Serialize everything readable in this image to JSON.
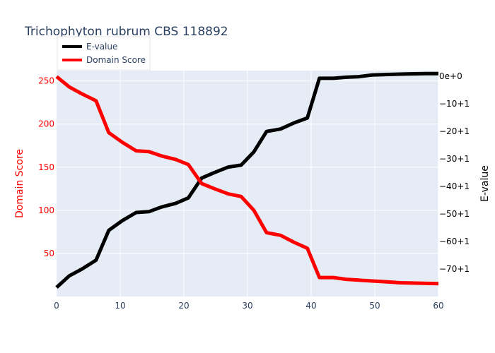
{
  "chart_data": {
    "type": "line",
    "title": "Trichophyton rubrum CBS 118892",
    "xlabel": "",
    "x_range": [
      0,
      60
    ],
    "x_ticks": [
      0,
      10,
      20,
      30,
      40,
      50,
      60
    ],
    "y_left": {
      "label": "Domain Score",
      "range": [
        0,
        262
      ],
      "ticks": [
        50,
        100,
        150,
        200,
        250
      ],
      "tick_labels": [
        "50",
        "100",
        "150",
        "200",
        "250"
      ],
      "color": "#ff0000"
    },
    "y_right": {
      "label": "E-value",
      "range": [
        -80.0,
        2.0
      ],
      "ticks": [
        0,
        -10,
        -20,
        -30,
        -40,
        -50,
        -60,
        -70
      ],
      "tick_labels": [
        "0e+0",
        "−10+1",
        "−20+1",
        "−30+1",
        "−40+1",
        "−50+1",
        "−60+1",
        "−70+1"
      ],
      "color": "#000000"
    },
    "series": [
      {
        "name": "E-value",
        "axis": "right",
        "color": "#000000",
        "x": [
          0,
          2,
          4,
          6.2,
          8.2,
          10.3,
          12.5,
          14.5,
          16.5,
          18.7,
          20.7,
          22.8,
          24.8,
          27,
          29,
          31,
          33,
          35.2,
          37.3,
          39.4,
          41.3,
          43.5,
          45.5,
          47.5,
          49.6,
          52,
          55,
          58,
          60
        ],
        "values": [
          -76.7,
          -72.5,
          -70.0,
          -66.8,
          -56.0,
          -52.5,
          -49.5,
          -49.2,
          -47.5,
          -46.2,
          -44.2,
          -37.0,
          -35.0,
          -33.0,
          -32.3,
          -27.5,
          -20.1,
          -19.2,
          -17.0,
          -15.2,
          -0.8,
          -0.8,
          -0.4,
          -0.2,
          0.4,
          0.6,
          0.8,
          0.9,
          0.9
        ]
      },
      {
        "name": "Domain Score",
        "axis": "left",
        "color": "#ff0000",
        "x": [
          0,
          2,
          4,
          6.2,
          8.2,
          10.3,
          12.5,
          14.5,
          16.5,
          18.7,
          20.7,
          22.8,
          24.8,
          27,
          29,
          31,
          33,
          35.2,
          37.3,
          39.4,
          41.3,
          43.5,
          45.5,
          47.5,
          49.6,
          52,
          54,
          57,
          60
        ],
        "values": [
          255,
          243,
          235,
          227,
          190,
          179,
          169,
          168,
          163,
          159,
          153,
          131,
          125,
          119,
          116,
          100,
          74,
          71,
          63,
          56,
          22,
          22,
          20,
          19,
          18,
          17,
          16,
          15.5,
          15
        ]
      }
    ],
    "legend": {
      "placement": "top-left",
      "entries": [
        "E-value",
        "Domain Score"
      ]
    },
    "grid": true,
    "plot_bg": "#e5ecf6"
  }
}
